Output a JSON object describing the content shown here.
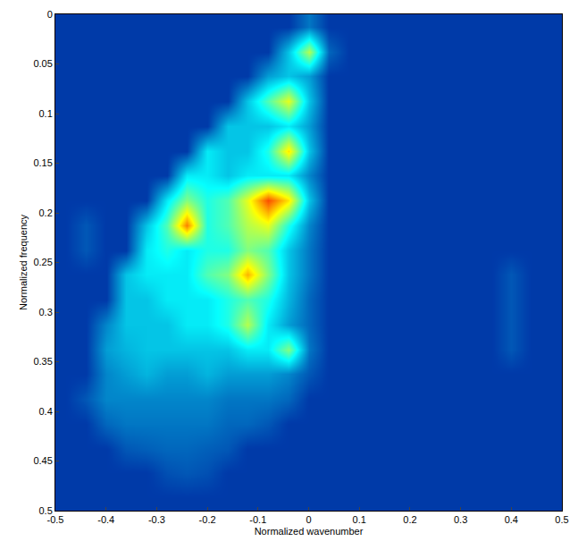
{
  "chart_data": {
    "type": "heatmap",
    "x_label": "Normalized wavenumber",
    "y_label": "Normalized frequency",
    "x": [
      -0.48,
      -0.44,
      -0.4,
      -0.36,
      -0.32,
      -0.28,
      -0.24,
      -0.2,
      -0.16,
      -0.12,
      -0.08,
      -0.04,
      0.0,
      0.04,
      0.08,
      0.12,
      0.16,
      0.2,
      0.24,
      0.28,
      0.32,
      0.36,
      0.4,
      0.44,
      0.48
    ],
    "y": [
      0.0125,
      0.0375,
      0.0625,
      0.0875,
      0.1125,
      0.1375,
      0.1625,
      0.1875,
      0.2125,
      0.2375,
      0.2625,
      0.2875,
      0.3125,
      0.3375,
      0.3625,
      0.3875,
      0.4125,
      0.4375,
      0.4625,
      0.4875
    ],
    "z": [
      [
        0.12,
        0.12,
        0.12,
        0.12,
        0.12,
        0.12,
        0.12,
        0.12,
        0.12,
        0.12,
        0.12,
        0.12,
        0.2,
        0.12,
        0.12,
        0.12,
        0.12,
        0.12,
        0.12,
        0.12,
        0.12,
        0.12,
        0.12,
        0.12,
        0.12
      ],
      [
        0.12,
        0.12,
        0.12,
        0.12,
        0.12,
        0.12,
        0.12,
        0.12,
        0.12,
        0.12,
        0.12,
        0.3,
        0.55,
        0.18,
        0.12,
        0.12,
        0.12,
        0.12,
        0.12,
        0.12,
        0.12,
        0.12,
        0.12,
        0.12,
        0.12
      ],
      [
        0.12,
        0.12,
        0.12,
        0.12,
        0.12,
        0.12,
        0.12,
        0.12,
        0.12,
        0.12,
        0.25,
        0.3,
        0.25,
        0.12,
        0.12,
        0.12,
        0.12,
        0.12,
        0.12,
        0.12,
        0.12,
        0.12,
        0.12,
        0.12,
        0.12
      ],
      [
        0.12,
        0.12,
        0.12,
        0.12,
        0.12,
        0.12,
        0.12,
        0.12,
        0.12,
        0.3,
        0.45,
        0.6,
        0.3,
        0.12,
        0.12,
        0.12,
        0.12,
        0.12,
        0.12,
        0.12,
        0.12,
        0.12,
        0.12,
        0.12,
        0.12
      ],
      [
        0.12,
        0.12,
        0.12,
        0.12,
        0.12,
        0.12,
        0.12,
        0.12,
        0.3,
        0.3,
        0.3,
        0.35,
        0.25,
        0.12,
        0.12,
        0.12,
        0.12,
        0.12,
        0.12,
        0.12,
        0.12,
        0.12,
        0.12,
        0.12,
        0.12
      ],
      [
        0.12,
        0.12,
        0.12,
        0.12,
        0.12,
        0.12,
        0.12,
        0.35,
        0.3,
        0.3,
        0.4,
        0.65,
        0.3,
        0.12,
        0.12,
        0.12,
        0.12,
        0.12,
        0.12,
        0.12,
        0.12,
        0.12,
        0.12,
        0.12,
        0.12
      ],
      [
        0.12,
        0.12,
        0.12,
        0.12,
        0.12,
        0.12,
        0.35,
        0.35,
        0.3,
        0.35,
        0.35,
        0.35,
        0.22,
        0.12,
        0.12,
        0.12,
        0.12,
        0.12,
        0.12,
        0.12,
        0.12,
        0.12,
        0.12,
        0.12,
        0.12
      ],
      [
        0.12,
        0.12,
        0.12,
        0.12,
        0.12,
        0.35,
        0.5,
        0.4,
        0.45,
        0.6,
        0.8,
        0.65,
        0.3,
        0.12,
        0.12,
        0.12,
        0.12,
        0.12,
        0.12,
        0.12,
        0.12,
        0.12,
        0.12,
        0.12,
        0.12
      ],
      [
        0.12,
        0.16,
        0.12,
        0.12,
        0.3,
        0.45,
        0.75,
        0.4,
        0.45,
        0.55,
        0.6,
        0.4,
        0.22,
        0.12,
        0.12,
        0.12,
        0.12,
        0.12,
        0.12,
        0.12,
        0.12,
        0.12,
        0.12,
        0.12,
        0.12
      ],
      [
        0.12,
        0.16,
        0.12,
        0.12,
        0.35,
        0.4,
        0.35,
        0.4,
        0.4,
        0.5,
        0.45,
        0.3,
        0.2,
        0.12,
        0.12,
        0.12,
        0.12,
        0.12,
        0.12,
        0.12,
        0.12,
        0.12,
        0.12,
        0.12,
        0.12
      ],
      [
        0.12,
        0.12,
        0.12,
        0.3,
        0.35,
        0.35,
        0.35,
        0.45,
        0.5,
        0.7,
        0.5,
        0.3,
        0.2,
        0.12,
        0.12,
        0.12,
        0.12,
        0.12,
        0.12,
        0.12,
        0.12,
        0.12,
        0.16,
        0.12,
        0.12
      ],
      [
        0.12,
        0.12,
        0.12,
        0.3,
        0.3,
        0.35,
        0.35,
        0.35,
        0.4,
        0.45,
        0.4,
        0.28,
        0.18,
        0.12,
        0.12,
        0.12,
        0.12,
        0.12,
        0.12,
        0.12,
        0.12,
        0.12,
        0.16,
        0.12,
        0.12
      ],
      [
        0.12,
        0.12,
        0.22,
        0.3,
        0.3,
        0.3,
        0.35,
        0.35,
        0.4,
        0.55,
        0.35,
        0.25,
        0.18,
        0.12,
        0.12,
        0.12,
        0.12,
        0.12,
        0.12,
        0.12,
        0.12,
        0.12,
        0.16,
        0.12,
        0.12
      ],
      [
        0.12,
        0.12,
        0.25,
        0.28,
        0.3,
        0.3,
        0.3,
        0.3,
        0.3,
        0.35,
        0.35,
        0.5,
        0.2,
        0.12,
        0.12,
        0.12,
        0.12,
        0.12,
        0.12,
        0.12,
        0.12,
        0.12,
        0.16,
        0.12,
        0.12
      ],
      [
        0.12,
        0.12,
        0.22,
        0.25,
        0.28,
        0.25,
        0.25,
        0.28,
        0.25,
        0.25,
        0.25,
        0.22,
        0.16,
        0.12,
        0.12,
        0.12,
        0.12,
        0.12,
        0.12,
        0.12,
        0.12,
        0.12,
        0.12,
        0.12,
        0.12
      ],
      [
        0.12,
        0.16,
        0.22,
        0.22,
        0.22,
        0.22,
        0.22,
        0.22,
        0.2,
        0.2,
        0.2,
        0.18,
        0.12,
        0.12,
        0.12,
        0.12,
        0.12,
        0.12,
        0.12,
        0.12,
        0.12,
        0.12,
        0.12,
        0.12,
        0.12
      ],
      [
        0.12,
        0.12,
        0.18,
        0.2,
        0.2,
        0.2,
        0.2,
        0.2,
        0.18,
        0.18,
        0.16,
        0.12,
        0.12,
        0.12,
        0.12,
        0.12,
        0.12,
        0.12,
        0.12,
        0.12,
        0.12,
        0.12,
        0.12,
        0.12,
        0.12
      ],
      [
        0.12,
        0.12,
        0.12,
        0.16,
        0.17,
        0.18,
        0.18,
        0.17,
        0.16,
        0.12,
        0.12,
        0.12,
        0.12,
        0.12,
        0.12,
        0.12,
        0.12,
        0.12,
        0.12,
        0.12,
        0.12,
        0.12,
        0.12,
        0.12,
        0.12
      ],
      [
        0.12,
        0.12,
        0.12,
        0.12,
        0.12,
        0.15,
        0.16,
        0.15,
        0.12,
        0.12,
        0.12,
        0.12,
        0.12,
        0.12,
        0.12,
        0.12,
        0.12,
        0.12,
        0.12,
        0.12,
        0.12,
        0.12,
        0.12,
        0.12,
        0.12
      ],
      [
        0.12,
        0.12,
        0.12,
        0.12,
        0.12,
        0.12,
        0.12,
        0.12,
        0.12,
        0.12,
        0.12,
        0.12,
        0.12,
        0.12,
        0.12,
        0.12,
        0.12,
        0.12,
        0.12,
        0.12,
        0.12,
        0.12,
        0.12,
        0.12,
        0.12
      ]
    ],
    "zlim": [
      0,
      1
    ],
    "xlim": [
      -0.5,
      0.5
    ],
    "ylim": [
      0.5,
      0
    ],
    "xticks": [
      -0.5,
      -0.4,
      -0.3,
      -0.2,
      -0.1,
      0,
      0.1,
      0.2,
      0.3,
      0.4,
      0.5
    ],
    "yticks": [
      0,
      0.05,
      0.1,
      0.15,
      0.2,
      0.25,
      0.3,
      0.35,
      0.4,
      0.45,
      0.5
    ],
    "grid": false
  }
}
